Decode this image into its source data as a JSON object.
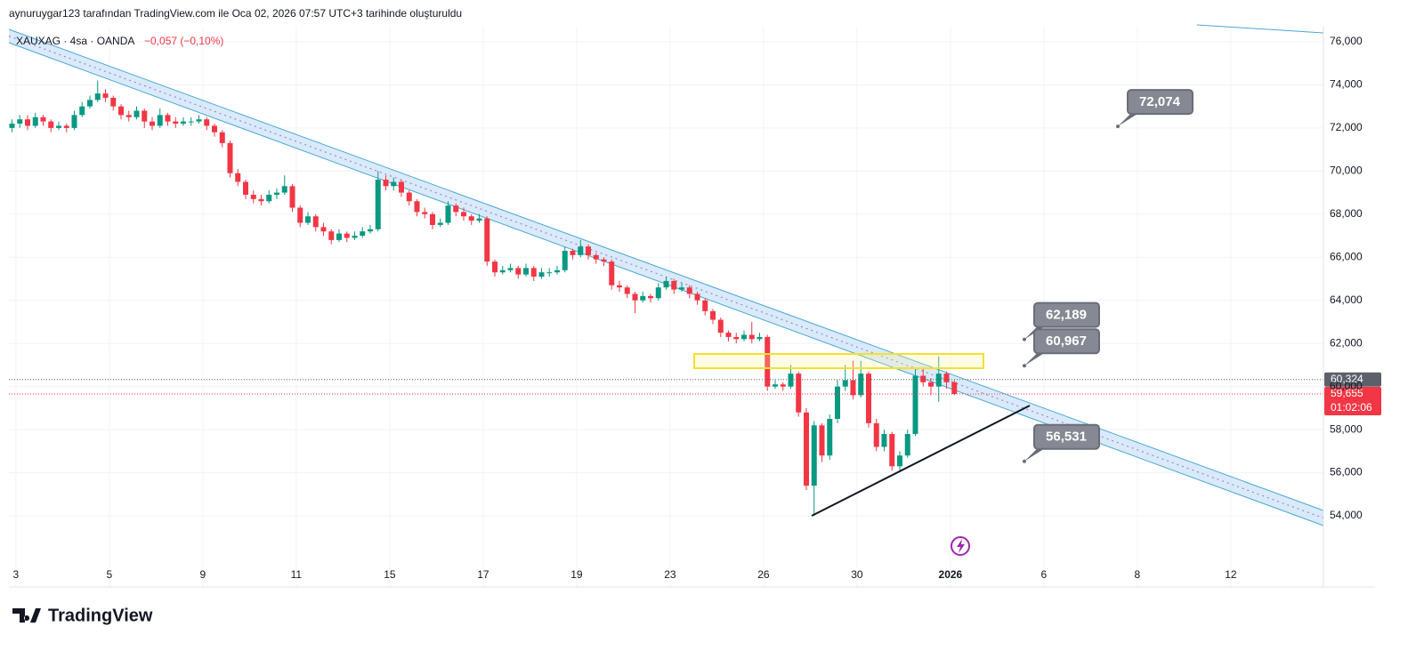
{
  "chart_data": {
    "type": "candlestick",
    "title": "aynuruygar123 tarafından TradingView.com ile Oca 02, 2026 07:57 UTC+3 tarihinde oluşturuldu",
    "symbol": "XAUXAG · 4sa · OANDA",
    "change": "−0,057 (−0,10%)",
    "brand": "TradingView",
    "up_color": "#089981",
    "down_color": "#f23645",
    "ylim": [
      50.7,
      76.7
    ],
    "yticks": [
      {
        "value": 54,
        "label": "54,000"
      },
      {
        "value": 56,
        "label": "56,000"
      },
      {
        "value": 58,
        "label": "58,000"
      },
      {
        "value": 60,
        "label": "60,000"
      },
      {
        "value": 62,
        "label": "62,000"
      },
      {
        "value": 64,
        "label": "64,000"
      },
      {
        "value": 66,
        "label": "66,000"
      },
      {
        "value": 68,
        "label": "68,000"
      },
      {
        "value": 70,
        "label": "70,000"
      },
      {
        "value": 72,
        "label": "72,000"
      },
      {
        "value": 74,
        "label": "74,000"
      },
      {
        "value": 76,
        "label": "76,000"
      }
    ],
    "xlim": [
      -0.4,
      168.4
    ],
    "xticks": [
      {
        "value": 0.5,
        "label": "3"
      },
      {
        "value": 12.5,
        "label": "5"
      },
      {
        "value": 24.5,
        "label": "9"
      },
      {
        "value": 36.5,
        "label": "11"
      },
      {
        "value": 48.5,
        "label": "15"
      },
      {
        "value": 60.5,
        "label": "17"
      },
      {
        "value": 72.5,
        "label": "19"
      },
      {
        "value": 84.5,
        "label": "23"
      },
      {
        "value": 96.5,
        "label": "26"
      },
      {
        "value": 108.5,
        "label": "30"
      },
      {
        "value": 120.5,
        "label": "2026"
      },
      {
        "value": 132.5,
        "label": "6"
      },
      {
        "value": 144.5,
        "label": "8"
      },
      {
        "value": 156.5,
        "label": "12"
      }
    ],
    "grid": true,
    "price_lines": [
      {
        "value": 60.324,
        "label": "60,324",
        "color": "#5d606b"
      },
      {
        "value": 59.655,
        "label": "59,655",
        "color": "#f23645",
        "countdown": "01:02:06"
      }
    ],
    "annotations": [
      {
        "x": 142,
        "value": 72.074,
        "label": "72,074"
      },
      {
        "x": 130,
        "value": 62.189,
        "label": "62,189"
      },
      {
        "x": 130,
        "value": 60.967,
        "label": "60,967"
      },
      {
        "x": 130,
        "value": 56.531,
        "label": "56,531"
      }
    ],
    "ohlc": [
      [
        72.0,
        72.4,
        71.8,
        72.2
      ],
      [
        72.2,
        72.6,
        72.0,
        72.4
      ],
      [
        72.4,
        72.6,
        71.9,
        72.1
      ],
      [
        72.1,
        72.7,
        72.0,
        72.5
      ],
      [
        72.5,
        72.6,
        72.1,
        72.3
      ],
      [
        72.3,
        72.4,
        71.8,
        72.0
      ],
      [
        72.0,
        72.3,
        71.9,
        72.1
      ],
      [
        72.1,
        72.2,
        71.8,
        72.0
      ],
      [
        72.0,
        72.8,
        71.9,
        72.6
      ],
      [
        72.6,
        73.2,
        72.5,
        73.0
      ],
      [
        73.0,
        73.5,
        72.9,
        73.3
      ],
      [
        73.3,
        74.2,
        73.2,
        73.6
      ],
      [
        73.6,
        73.8,
        73.2,
        73.4
      ],
      [
        73.4,
        73.5,
        72.8,
        73.0
      ],
      [
        73.0,
        73.1,
        72.4,
        72.6
      ],
      [
        72.6,
        72.8,
        72.3,
        72.5
      ],
      [
        72.5,
        73.0,
        72.4,
        72.8
      ],
      [
        72.8,
        72.9,
        72.0,
        72.3
      ],
      [
        72.3,
        72.5,
        71.9,
        72.1
      ],
      [
        72.1,
        72.9,
        72.0,
        72.6
      ],
      [
        72.6,
        72.7,
        72.1,
        72.3
      ],
      [
        72.3,
        72.5,
        72.0,
        72.2
      ],
      [
        72.2,
        72.5,
        72.1,
        72.3
      ],
      [
        72.3,
        72.5,
        72.1,
        72.3
      ],
      [
        72.3,
        72.6,
        72.2,
        72.4
      ],
      [
        72.4,
        72.5,
        71.9,
        72.1
      ],
      [
        72.1,
        72.2,
        71.6,
        71.8
      ],
      [
        71.8,
        71.9,
        71.1,
        71.3
      ],
      [
        71.3,
        71.4,
        69.7,
        69.9
      ],
      [
        69.9,
        70.1,
        69.3,
        69.5
      ],
      [
        69.5,
        69.6,
        68.7,
        68.9
      ],
      [
        68.9,
        69.1,
        68.5,
        68.7
      ],
      [
        68.7,
        68.9,
        68.4,
        68.6
      ],
      [
        68.6,
        69.1,
        68.5,
        68.9
      ],
      [
        68.9,
        69.2,
        68.7,
        69.0
      ],
      [
        69.0,
        69.8,
        68.9,
        69.3
      ],
      [
        69.3,
        69.4,
        68.1,
        68.3
      ],
      [
        68.3,
        68.4,
        67.4,
        67.6
      ],
      [
        67.6,
        68.1,
        67.5,
        67.9
      ],
      [
        67.9,
        68.0,
        67.2,
        67.4
      ],
      [
        67.4,
        67.6,
        67.0,
        67.2
      ],
      [
        67.2,
        67.3,
        66.6,
        66.8
      ],
      [
        66.8,
        67.3,
        66.7,
        67.1
      ],
      [
        67.1,
        67.2,
        66.7,
        66.9
      ],
      [
        66.9,
        67.2,
        66.8,
        67.0
      ],
      [
        67.0,
        67.4,
        66.9,
        67.2
      ],
      [
        67.2,
        67.5,
        67.1,
        67.3
      ],
      [
        67.3,
        70.0,
        67.2,
        69.6
      ],
      [
        69.6,
        69.8,
        69.1,
        69.3
      ],
      [
        69.3,
        69.7,
        69.1,
        69.5
      ],
      [
        69.5,
        69.6,
        68.8,
        69.0
      ],
      [
        69.0,
        69.1,
        68.4,
        68.6
      ],
      [
        68.6,
        68.7,
        67.9,
        68.1
      ],
      [
        68.1,
        68.3,
        67.8,
        68.0
      ],
      [
        68.0,
        68.1,
        67.3,
        67.5
      ],
      [
        67.5,
        67.8,
        67.4,
        67.6
      ],
      [
        67.6,
        68.6,
        67.5,
        68.4
      ],
      [
        68.4,
        68.5,
        67.9,
        68.1
      ],
      [
        68.1,
        68.3,
        67.7,
        67.9
      ],
      [
        67.9,
        68.0,
        67.5,
        67.7
      ],
      [
        67.7,
        68.0,
        67.6,
        67.8
      ],
      [
        67.8,
        67.9,
        65.6,
        65.8
      ],
      [
        65.8,
        65.9,
        65.1,
        65.3
      ],
      [
        65.3,
        65.6,
        65.2,
        65.4
      ],
      [
        65.4,
        65.7,
        65.3,
        65.5
      ],
      [
        65.5,
        65.6,
        65.0,
        65.2
      ],
      [
        65.2,
        65.7,
        65.1,
        65.5
      ],
      [
        65.5,
        65.6,
        64.9,
        65.1
      ],
      [
        65.1,
        65.5,
        65.0,
        65.3
      ],
      [
        65.3,
        65.5,
        65.1,
        65.3
      ],
      [
        65.3,
        65.6,
        65.2,
        65.4
      ],
      [
        65.4,
        66.5,
        65.3,
        66.3
      ],
      [
        66.3,
        66.4,
        65.9,
        66.1
      ],
      [
        66.1,
        66.8,
        66.0,
        66.5
      ],
      [
        66.5,
        66.6,
        65.9,
        66.1
      ],
      [
        66.1,
        66.2,
        65.7,
        65.9
      ],
      [
        65.9,
        66.0,
        65.6,
        65.8
      ],
      [
        65.8,
        65.9,
        64.5,
        64.7
      ],
      [
        64.7,
        64.9,
        64.4,
        64.6
      ],
      [
        64.6,
        64.7,
        64.1,
        64.3
      ],
      [
        64.3,
        64.4,
        63.4,
        64.0
      ],
      [
        64.0,
        64.4,
        63.9,
        64.2
      ],
      [
        64.2,
        64.3,
        63.9,
        64.1
      ],
      [
        64.1,
        64.8,
        64.0,
        64.6
      ],
      [
        64.6,
        65.1,
        64.5,
        64.9
      ],
      [
        64.9,
        65.0,
        64.3,
        64.5
      ],
      [
        64.5,
        64.8,
        64.4,
        64.6
      ],
      [
        64.6,
        64.7,
        64.1,
        64.3
      ],
      [
        64.3,
        64.4,
        63.8,
        64.0
      ],
      [
        64.0,
        64.1,
        63.3,
        63.5
      ],
      [
        63.5,
        63.6,
        62.9,
        63.1
      ],
      [
        63.1,
        63.2,
        62.3,
        62.5
      ],
      [
        62.5,
        62.6,
        62.1,
        62.3
      ],
      [
        62.3,
        62.5,
        62.0,
        62.2
      ],
      [
        62.2,
        62.6,
        62.1,
        62.4
      ],
      [
        62.4,
        63.0,
        62.0,
        62.2
      ],
      [
        62.2,
        62.5,
        62.1,
        62.3
      ],
      [
        62.3,
        62.4,
        59.8,
        60.0
      ],
      [
        60.0,
        60.3,
        59.9,
        60.1
      ],
      [
        60.1,
        60.2,
        59.8,
        60.0
      ],
      [
        60.0,
        61.0,
        59.9,
        60.6
      ],
      [
        60.6,
        60.7,
        58.6,
        58.8
      ],
      [
        58.8,
        59.0,
        55.2,
        55.4
      ],
      [
        55.4,
        58.4,
        54.0,
        58.2
      ],
      [
        58.2,
        58.3,
        56.5,
        56.8
      ],
      [
        56.8,
        58.7,
        56.6,
        58.5
      ],
      [
        58.5,
        60.3,
        58.3,
        60.0
      ],
      [
        60.0,
        61.0,
        59.8,
        60.3
      ],
      [
        60.3,
        61.2,
        59.4,
        59.6
      ],
      [
        59.6,
        61.2,
        59.5,
        60.6
      ],
      [
        60.6,
        60.7,
        58.1,
        58.3
      ],
      [
        58.3,
        58.5,
        57.0,
        57.2
      ],
      [
        57.2,
        58.0,
        57.0,
        57.8
      ],
      [
        57.8,
        57.9,
        56.1,
        56.3
      ],
      [
        56.3,
        57.0,
        56.1,
        56.8
      ],
      [
        56.8,
        58.0,
        56.7,
        57.8
      ],
      [
        57.8,
        60.8,
        57.7,
        60.5
      ],
      [
        60.5,
        60.9,
        60.0,
        60.2
      ],
      [
        60.2,
        60.4,
        59.6,
        60.0
      ],
      [
        60.0,
        61.4,
        59.3,
        60.6
      ],
      [
        60.6,
        60.7,
        59.9,
        60.2
      ],
      [
        60.2,
        60.3,
        59.6,
        59.655
      ]
    ]
  }
}
